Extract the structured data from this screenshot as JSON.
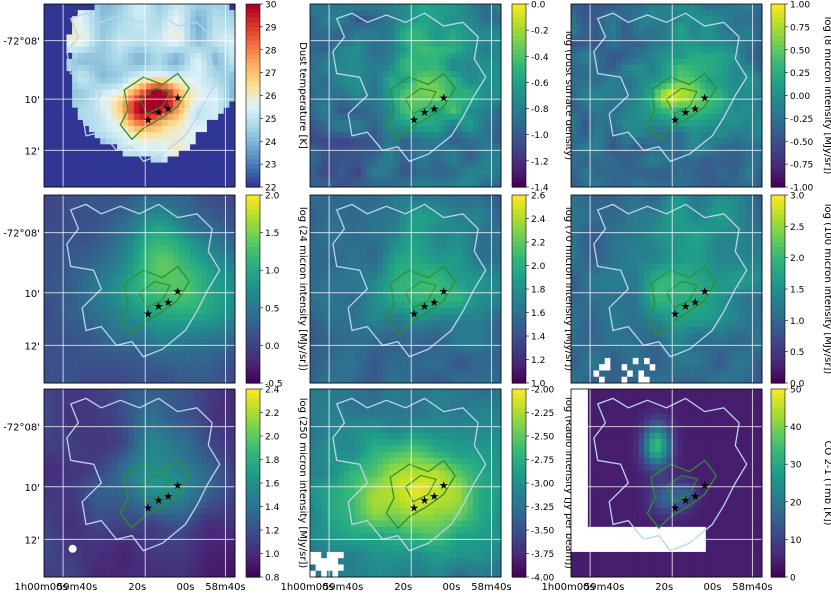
{
  "figure": {
    "ra_tick_labels": [
      "1h00m00s",
      "59m40s",
      "20s",
      "00s",
      "58m40s"
    ],
    "dec_tick_labels": [
      "-72°08'",
      "10'",
      "12'"
    ],
    "contour_colors": {
      "outer": "#b9d4ec",
      "inner": "#2f8f2f"
    },
    "star_marker": "★"
  },
  "chart_data": [
    {
      "type": "heatmap",
      "panel": "dust-temperature",
      "colormap": "RdYlBu_r",
      "colorbar_label": "Dust temperature [K]",
      "colorbar_ticks": [
        "30",
        "29",
        "28",
        "27",
        "26",
        "25",
        "24",
        "23",
        "22"
      ],
      "range": [
        22,
        30
      ]
    },
    {
      "type": "heatmap",
      "panel": "dust-surface-density",
      "colormap": "viridis",
      "colorbar_label": "log (Dust surface density)",
      "colorbar_ticks": [
        "0.0",
        "-0.2",
        "-0.4",
        "-0.6",
        "-0.8",
        "-1.0",
        "-1.2",
        "-1.4"
      ],
      "range": [
        -1.5,
        0.0
      ]
    },
    {
      "type": "heatmap",
      "panel": "8-micron",
      "colormap": "viridis",
      "colorbar_label": "log (8 micron intensity [MJy/sr])",
      "colorbar_ticks": [
        "1.00",
        "0.75",
        "0.50",
        "0.25",
        "0.00",
        "-0.25",
        "-0.50",
        "-0.75",
        "-1.00"
      ],
      "range": [
        -1.0,
        1.0
      ]
    },
    {
      "type": "heatmap",
      "panel": "24-micron",
      "colormap": "viridis",
      "colorbar_label": "log (24 micron intensity [MJy/sr])",
      "colorbar_ticks": [
        "2.0",
        "1.5",
        "1.0",
        "0.5",
        "0.0",
        "-0.5"
      ],
      "range": [
        -0.5,
        2.0
      ]
    },
    {
      "type": "heatmap",
      "panel": "70-micron",
      "colormap": "viridis",
      "colorbar_label": "log (70 micron intensity [MJy/sr])",
      "colorbar_ticks": [
        "2.6",
        "2.4",
        "2.2",
        "2.0",
        "1.8",
        "1.6",
        "1.4",
        "1.2",
        "1.0"
      ],
      "range": [
        1.0,
        2.6
      ]
    },
    {
      "type": "heatmap",
      "panel": "100-micron",
      "colormap": "viridis",
      "colorbar_label": "log (100 micron intensity [MJy/sr])",
      "colorbar_ticks": [
        "3.0",
        "2.5",
        "2.0",
        "1.5",
        "1.0",
        "0.5",
        "0.0"
      ],
      "range": [
        0.0,
        3.0
      ]
    },
    {
      "type": "heatmap",
      "panel": "250-micron",
      "colormap": "viridis",
      "colorbar_label": "log (250 micron intensity [MJy/sr])",
      "colorbar_ticks": [
        "2.4",
        "2.2",
        "2.0",
        "1.8",
        "1.6",
        "1.4",
        "1.2",
        "1.0",
        "0.8"
      ],
      "range": [
        0.8,
        2.4
      ]
    },
    {
      "type": "heatmap",
      "panel": "radio",
      "colormap": "viridis",
      "colorbar_label": "log (Radio intensity [Jy per beam])",
      "colorbar_ticks": [
        "-2.00",
        "-2.25",
        "-2.50",
        "-2.75",
        "-3.00",
        "-3.25",
        "-3.50",
        "-3.75",
        "-4.00"
      ],
      "range": [
        -4.0,
        -1.9
      ]
    },
    {
      "type": "heatmap",
      "panel": "co-2-1",
      "colormap": "viridis",
      "colorbar_label": "CO 2-1 (Tmb [K])",
      "colorbar_ticks": [
        "50",
        "40",
        "30",
        "20",
        "10",
        "0"
      ],
      "range": [
        0,
        50
      ]
    }
  ]
}
